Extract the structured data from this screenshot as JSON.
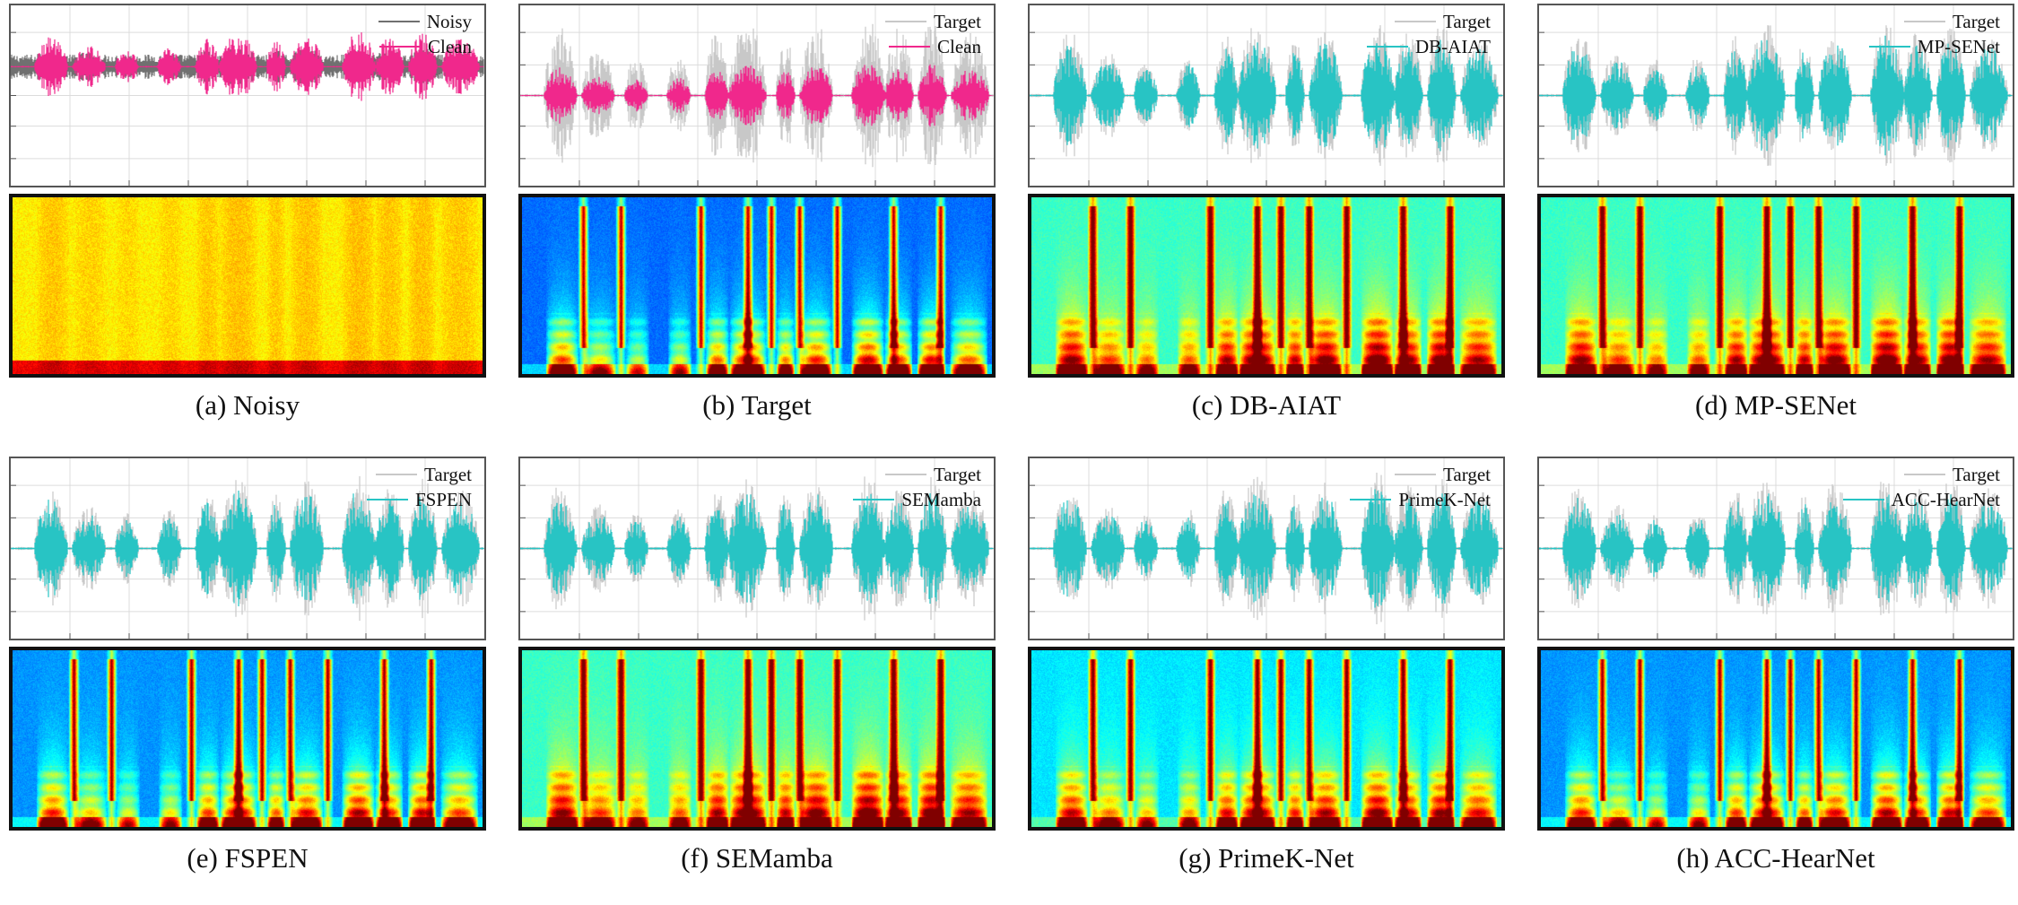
{
  "figure": {
    "panels": [
      {
        "id": "a",
        "caption": "(a) Noisy",
        "legend": [
          "Noisy",
          "Clean"
        ],
        "wave_colors": [
          "#707070",
          "#f0288c"
        ],
        "spectrogram_style": "noisy"
      },
      {
        "id": "b",
        "caption": "(b) Target",
        "legend": [
          "Target",
          "Clean"
        ],
        "wave_colors": [
          "#c8c8c8",
          "#f0288c"
        ],
        "spectrogram_style": "target"
      },
      {
        "id": "c",
        "caption": "(c) DB-AIAT",
        "legend": [
          "Target",
          "DB-AIAT"
        ],
        "wave_colors": [
          "#c8c8c8",
          "#28c4c4"
        ],
        "spectrogram_style": "enhanced-light"
      },
      {
        "id": "d",
        "caption": "(d) MP-SENet",
        "legend": [
          "Target",
          "MP-SENet"
        ],
        "wave_colors": [
          "#c8c8c8",
          "#28c4c4"
        ],
        "spectrogram_style": "enhanced-light"
      },
      {
        "id": "e",
        "caption": "(e) FSPEN",
        "legend": [
          "Target",
          "FSPEN"
        ],
        "wave_colors": [
          "#c8c8c8",
          "#28c4c4"
        ],
        "spectrogram_style": "enhanced-dark"
      },
      {
        "id": "f",
        "caption": "(f) SEMamba",
        "legend": [
          "Target",
          "SEMamba"
        ],
        "wave_colors": [
          "#c8c8c8",
          "#28c4c4"
        ],
        "spectrogram_style": "enhanced-light"
      },
      {
        "id": "g",
        "caption": "(g) PrimeK-Net",
        "legend": [
          "Target",
          "PrimeK-Net"
        ],
        "wave_colors": [
          "#c8c8c8",
          "#28c4c4"
        ],
        "spectrogram_style": "enhanced-mid"
      },
      {
        "id": "h",
        "caption": "(h) ACC-HearNet",
        "legend": [
          "Target",
          "ACC-HearNet"
        ],
        "wave_colors": [
          "#c8c8c8",
          "#28c4c4"
        ],
        "spectrogram_style": "enhanced-dark"
      }
    ]
  }
}
